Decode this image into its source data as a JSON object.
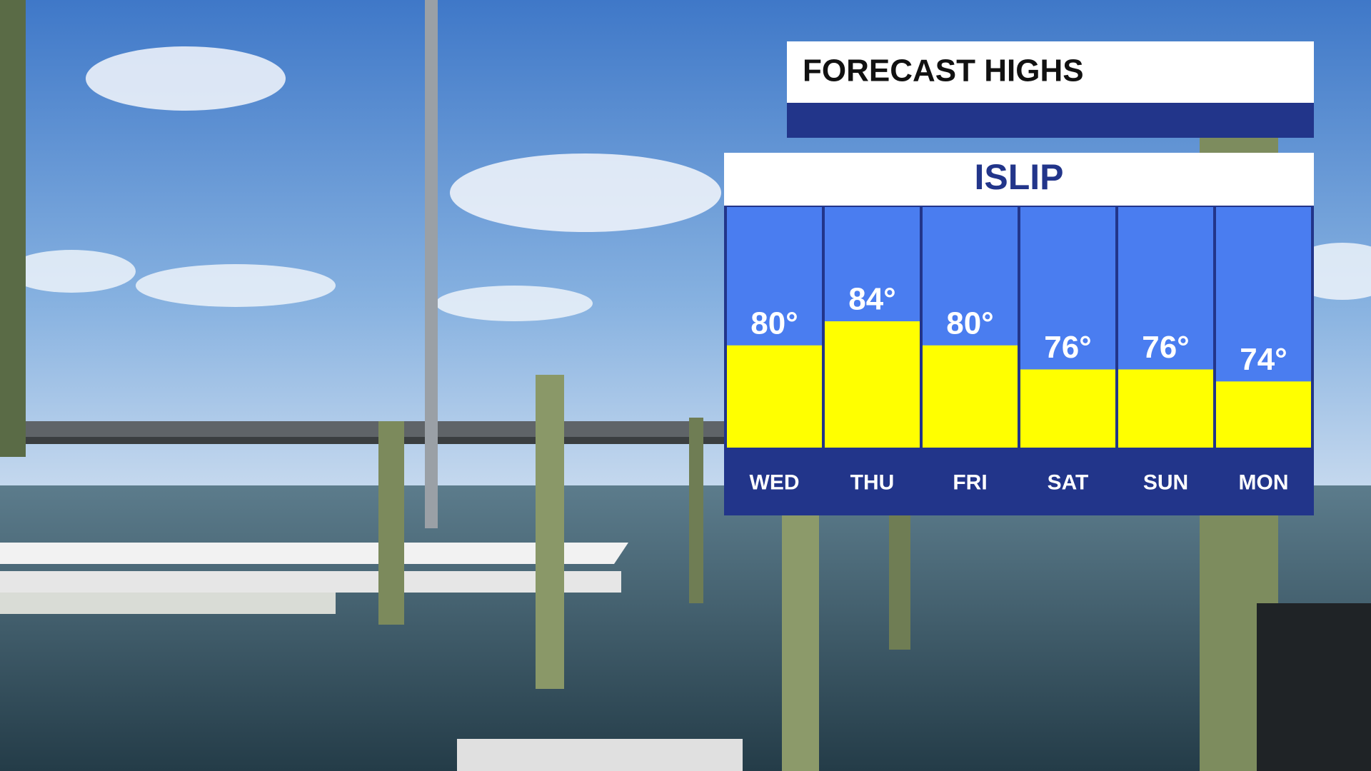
{
  "chart_data": {
    "type": "bar",
    "title": "FORECAST HIGHS",
    "subtitle": "ISLIP",
    "categories": [
      "WED",
      "THU",
      "FRI",
      "SAT",
      "SUN",
      "MON"
    ],
    "values": [
      80,
      84,
      80,
      76,
      76,
      74
    ],
    "value_labels": [
      "80°",
      "84°",
      "80°",
      "76°",
      "76°",
      "74°"
    ],
    "color": "#ffff00",
    "ylim": [
      63,
      103
    ]
  }
}
